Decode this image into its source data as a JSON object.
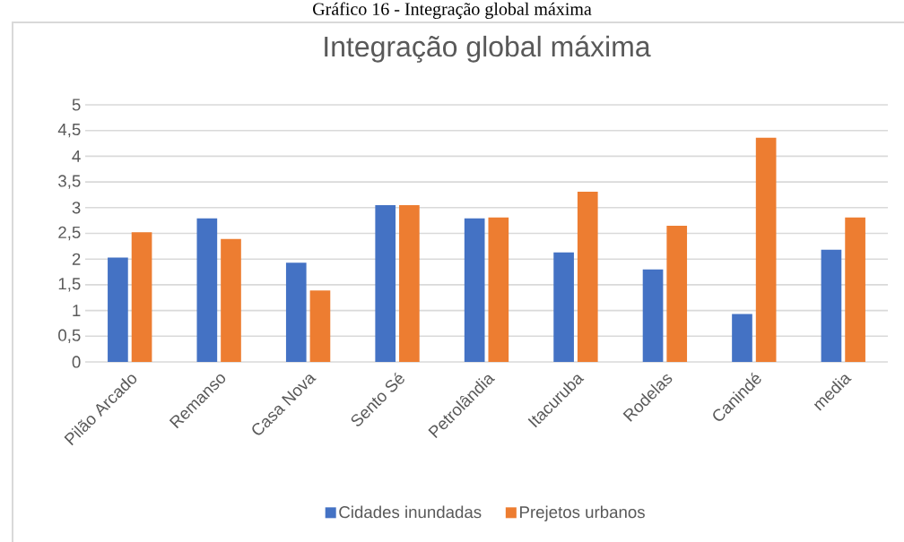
{
  "chart_data": {
    "type": "bar",
    "title": "Integração global máxima",
    "annotations": [
      "Gráfico 16 - Integração global máxima"
    ],
    "categories": [
      "Pilão Arcado",
      "Remanso",
      "Casa Nova",
      "Sento Sé",
      "Petrolândia",
      "Itacuruba",
      "Rodelas",
      "Canindé",
      "media"
    ],
    "series": [
      {
        "name": "Cidades inundadas",
        "color": "#4472c4",
        "values": [
          2.03,
          2.79,
          1.93,
          3.05,
          2.79,
          2.13,
          1.8,
          0.93,
          2.18
        ]
      },
      {
        "name": "Prejetos urbanos",
        "color": "#ed7d31",
        "values": [
          2.52,
          2.39,
          1.39,
          3.05,
          2.81,
          3.31,
          2.65,
          4.36,
          2.81
        ]
      }
    ],
    "ylim": [
      0,
      5
    ],
    "yticks": [
      {
        "value": 0,
        "label": "0"
      },
      {
        "value": 0.5,
        "label": "0,5"
      },
      {
        "value": 1,
        "label": "1"
      },
      {
        "value": 1.5,
        "label": "1,5"
      },
      {
        "value": 2,
        "label": "2"
      },
      {
        "value": 2.5,
        "label": "2,5"
      },
      {
        "value": 3,
        "label": "3"
      },
      {
        "value": 3.5,
        "label": "3,5"
      },
      {
        "value": 4,
        "label": "4"
      },
      {
        "value": 4.5,
        "label": "4,5"
      },
      {
        "value": 5,
        "label": "5"
      }
    ],
    "grid": "y",
    "legend": "bottom"
  }
}
